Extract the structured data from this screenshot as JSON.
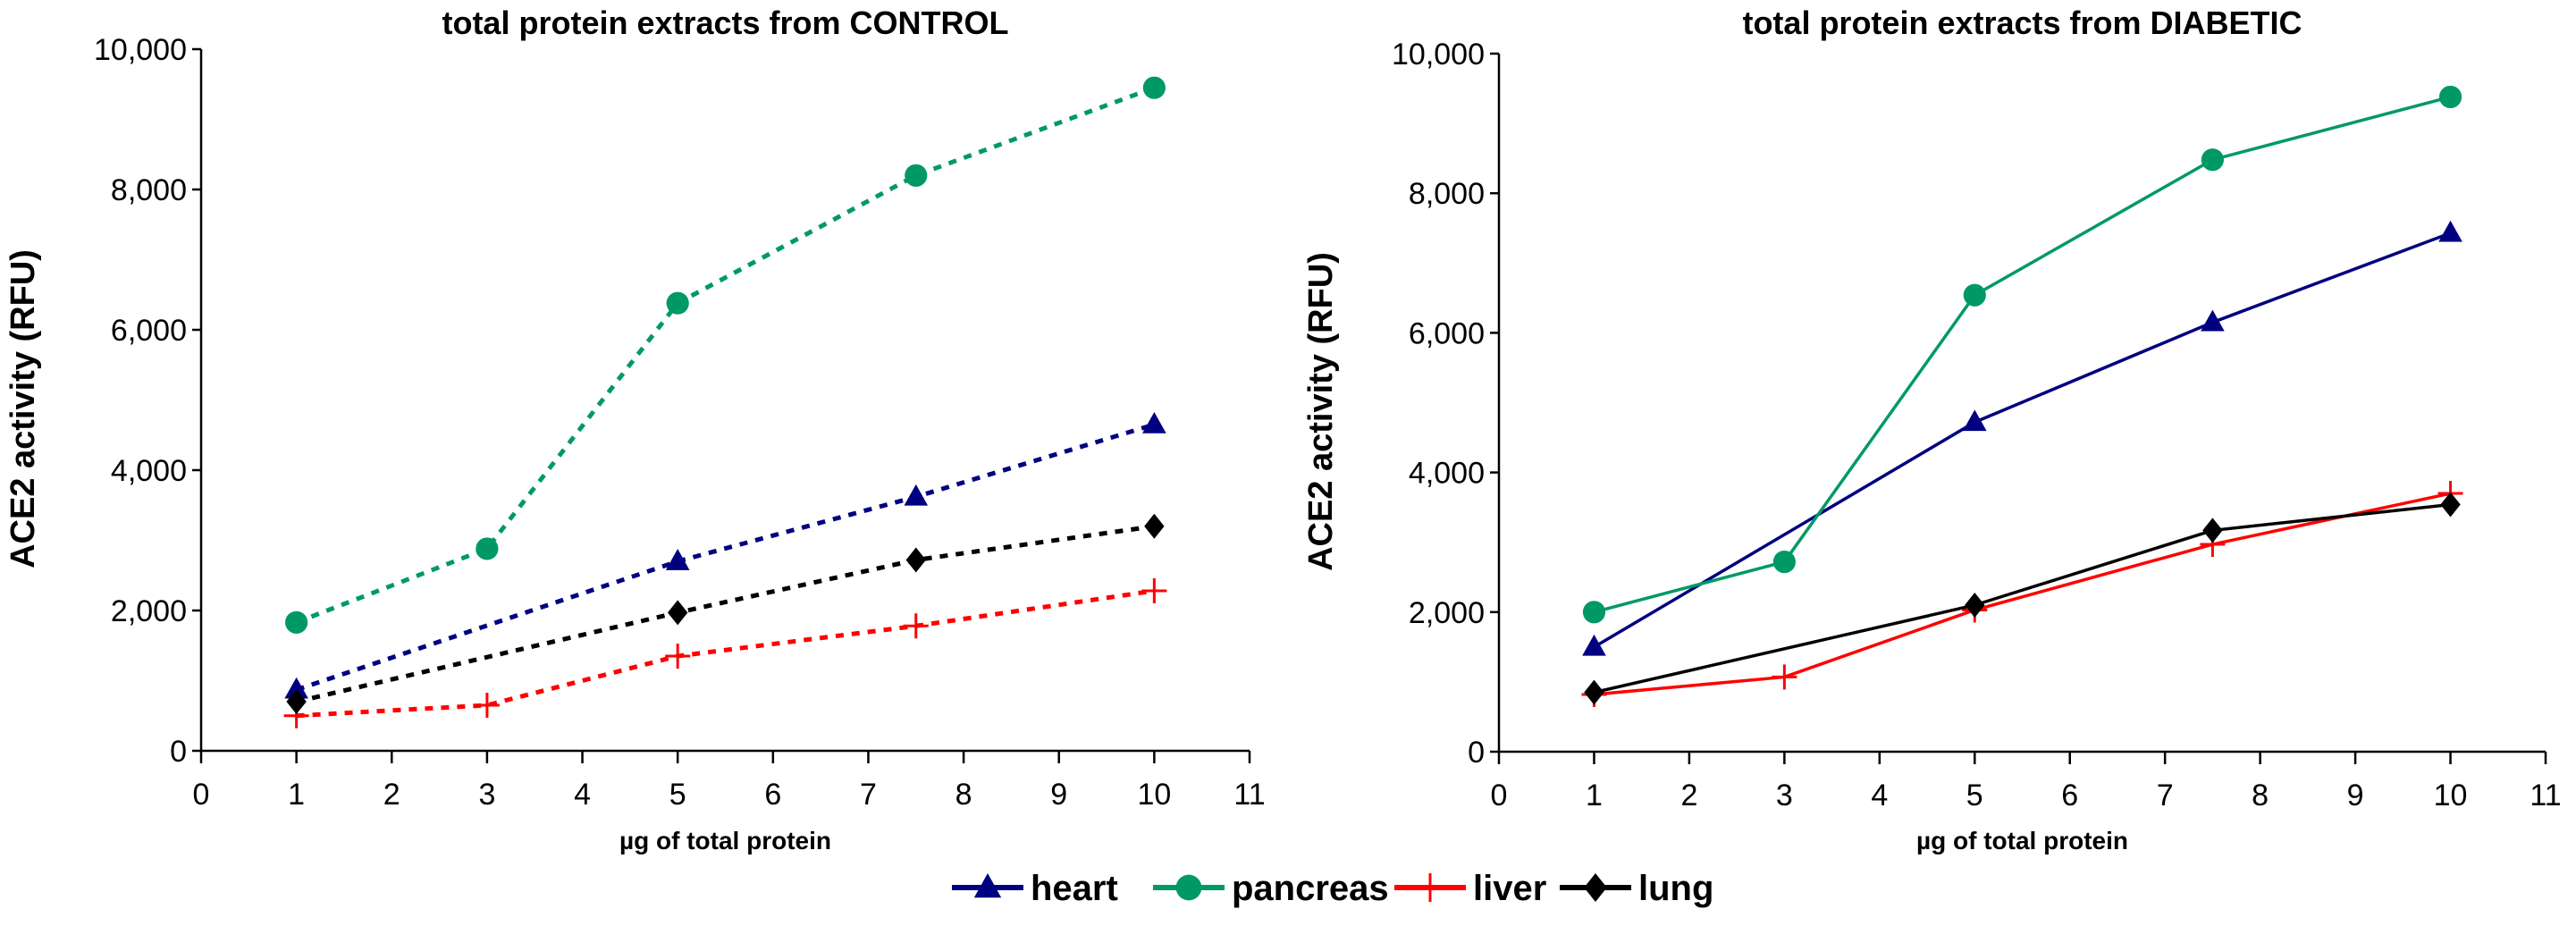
{
  "colors": {
    "heart": "#000080",
    "pancreas": "#009966",
    "liver": "#ff0000",
    "lung": "#000000"
  },
  "legend": [
    {
      "key": "heart",
      "label": "heart",
      "marker": "triangle"
    },
    {
      "key": "pancreas",
      "label": "pancreas",
      "marker": "circle"
    },
    {
      "key": "liver",
      "label": "liver",
      "marker": "plus"
    },
    {
      "key": "lung",
      "label": "lung",
      "marker": "diamond"
    }
  ],
  "chart_data": [
    {
      "type": "line",
      "title": "total protein extracts from CONTROL",
      "xlabel": "µg of total protein",
      "ylabel": "ACE2 activity (RFU)",
      "xlim": [
        0,
        11
      ],
      "ylim": [
        0,
        10000
      ],
      "xticks": [
        "0",
        "1",
        "2",
        "3",
        "4",
        "5",
        "6",
        "7",
        "8",
        "9",
        "10",
        "11"
      ],
      "yticks": [
        "0",
        "2,000",
        "4,000",
        "6,000",
        "8,000",
        "10,000"
      ],
      "line_style": "dotted",
      "grid": false,
      "series": [
        {
          "name": "heart",
          "x": [
            1,
            5,
            7.5,
            10
          ],
          "values": [
            870,
            2700,
            3620,
            4650
          ]
        },
        {
          "name": "pancreas",
          "x": [
            1,
            3,
            5,
            7.5,
            10
          ],
          "values": [
            1830,
            2880,
            6380,
            8200,
            9450
          ]
        },
        {
          "name": "liver",
          "x": [
            1,
            3,
            5,
            7.5,
            10
          ],
          "values": [
            500,
            650,
            1350,
            1780,
            2280
          ]
        },
        {
          "name": "lung",
          "x": [
            1,
            5,
            7.5,
            10
          ],
          "values": [
            700,
            1970,
            2720,
            3200
          ]
        }
      ]
    },
    {
      "type": "line",
      "title": "total protein extracts from DIABETIC",
      "xlabel": "µg of total protein",
      "ylabel": "ACE2 activity (RFU)",
      "xlim": [
        0,
        11
      ],
      "ylim": [
        0,
        10000
      ],
      "xticks": [
        "0",
        "1",
        "2",
        "3",
        "4",
        "5",
        "6",
        "7",
        "8",
        "9",
        "10",
        "11"
      ],
      "yticks": [
        "0",
        "2,000",
        "4,000",
        "6,000",
        "8,000",
        "10,000"
      ],
      "line_style": "solid",
      "grid": false,
      "series": [
        {
          "name": "heart",
          "x": [
            1,
            5,
            7.5,
            10
          ],
          "values": [
            1500,
            4720,
            6150,
            7430
          ]
        },
        {
          "name": "pancreas",
          "x": [
            1,
            3,
            5,
            7.5,
            10
          ],
          "values": [
            2000,
            2720,
            6540,
            8480,
            9380
          ]
        },
        {
          "name": "liver",
          "x": [
            1,
            3,
            5,
            7.5,
            10
          ],
          "values": [
            820,
            1070,
            2030,
            2970,
            3700
          ]
        },
        {
          "name": "lung",
          "x": [
            1,
            5,
            7.5,
            10
          ],
          "values": [
            850,
            2100,
            3170,
            3540
          ]
        }
      ]
    }
  ]
}
